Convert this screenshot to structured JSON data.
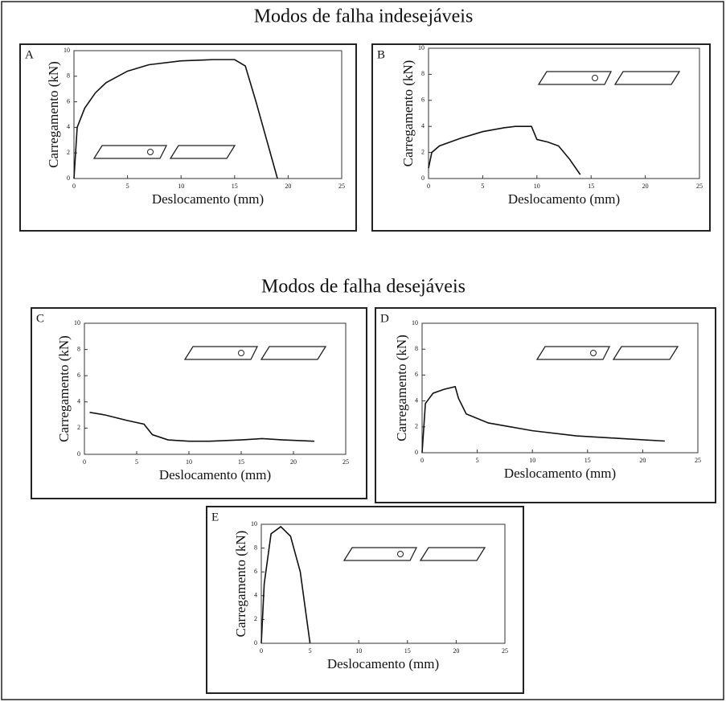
{
  "headings": [
    "Modos de falha indesejáveis",
    "Modos de falha desejáveis"
  ],
  "chart_data": [
    {
      "type": "line",
      "panel": "A",
      "xlabel": "Deslocamento (mm)",
      "ylabel": "Carregamento (kN)",
      "x": [
        0,
        0.3,
        1,
        2,
        3,
        5,
        7,
        10,
        13,
        15,
        16,
        17,
        18,
        19
      ],
      "series": [
        {
          "color": "#111111",
          "values": [
            0,
            4,
            5.5,
            6.7,
            7.5,
            8.4,
            8.9,
            9.2,
            9.3,
            9.3,
            8.8,
            6,
            3,
            0
          ]
        }
      ],
      "xlim": [
        0,
        25
      ],
      "ylim": [
        0,
        10
      ],
      "xticks": [
        0,
        5,
        10,
        15,
        20,
        25
      ],
      "yticks": [
        0,
        2,
        4,
        6,
        8,
        10
      ]
    },
    {
      "type": "line",
      "panel": "B",
      "xlabel": "Deslocamento (mm)",
      "ylabel": "Carregamento (kN)",
      "x": [
        0,
        0.3,
        1,
        3,
        5,
        7,
        8,
        9.5,
        10,
        11,
        12,
        13,
        14
      ],
      "series": [
        {
          "color": "#111111",
          "values": [
            0.8,
            2,
            2.5,
            3.1,
            3.6,
            3.9,
            4,
            4,
            3,
            2.8,
            2.5,
            1.5,
            0.3
          ]
        }
      ],
      "xlim": [
        0,
        25
      ],
      "ylim": [
        0,
        10
      ],
      "xticks": [
        0,
        5,
        10,
        15,
        20,
        25
      ],
      "yticks": [
        0,
        2,
        4,
        6,
        8,
        10
      ]
    },
    {
      "type": "line",
      "panel": "C",
      "xlabel": "Deslocamento (mm)",
      "ylabel": "Carregamento (kN)",
      "x": [
        0.5,
        2,
        4,
        5.7,
        6.5,
        8,
        10,
        12,
        15,
        17,
        19,
        22
      ],
      "series": [
        {
          "color": "#111111",
          "values": [
            3.2,
            3,
            2.6,
            2.3,
            1.5,
            1.1,
            1.0,
            1.0,
            1.1,
            1.2,
            1.1,
            1.0
          ]
        }
      ],
      "xlim": [
        0,
        25
      ],
      "ylim": [
        0,
        10
      ],
      "xticks": [
        0,
        5,
        10,
        15,
        20,
        25
      ],
      "yticks": [
        0,
        2,
        4,
        6,
        8,
        10
      ]
    },
    {
      "type": "line",
      "panel": "D",
      "xlabel": "Deslocamento (mm)",
      "ylabel": "Carregamento (kN)",
      "x": [
        0,
        0.3,
        1,
        2,
        3,
        3.3,
        4,
        6,
        8,
        10,
        14,
        18,
        22
      ],
      "series": [
        {
          "color": "#111111",
          "values": [
            0,
            3.8,
            4.6,
            4.9,
            5.1,
            4.2,
            3,
            2.3,
            2,
            1.7,
            1.3,
            1.1,
            0.9
          ]
        }
      ],
      "xlim": [
        0,
        25
      ],
      "ylim": [
        0,
        10
      ],
      "xticks": [
        0,
        5,
        10,
        15,
        20,
        25
      ],
      "yticks": [
        0,
        2,
        4,
        6,
        8,
        10
      ]
    },
    {
      "type": "line",
      "panel": "E",
      "xlabel": "Deslocamento (mm)",
      "ylabel": "Carregamento (kN)",
      "x": [
        0,
        0.3,
        1,
        2,
        3,
        4,
        5
      ],
      "series": [
        {
          "color": "#111111",
          "values": [
            0,
            5,
            9.2,
            9.8,
            9,
            6,
            0
          ]
        }
      ],
      "xlim": [
        0,
        25
      ],
      "ylim": [
        0,
        10
      ],
      "xticks": [
        0,
        5,
        10,
        15,
        20,
        25
      ],
      "yticks": [
        0,
        2,
        4,
        6,
        8,
        10
      ]
    }
  ]
}
